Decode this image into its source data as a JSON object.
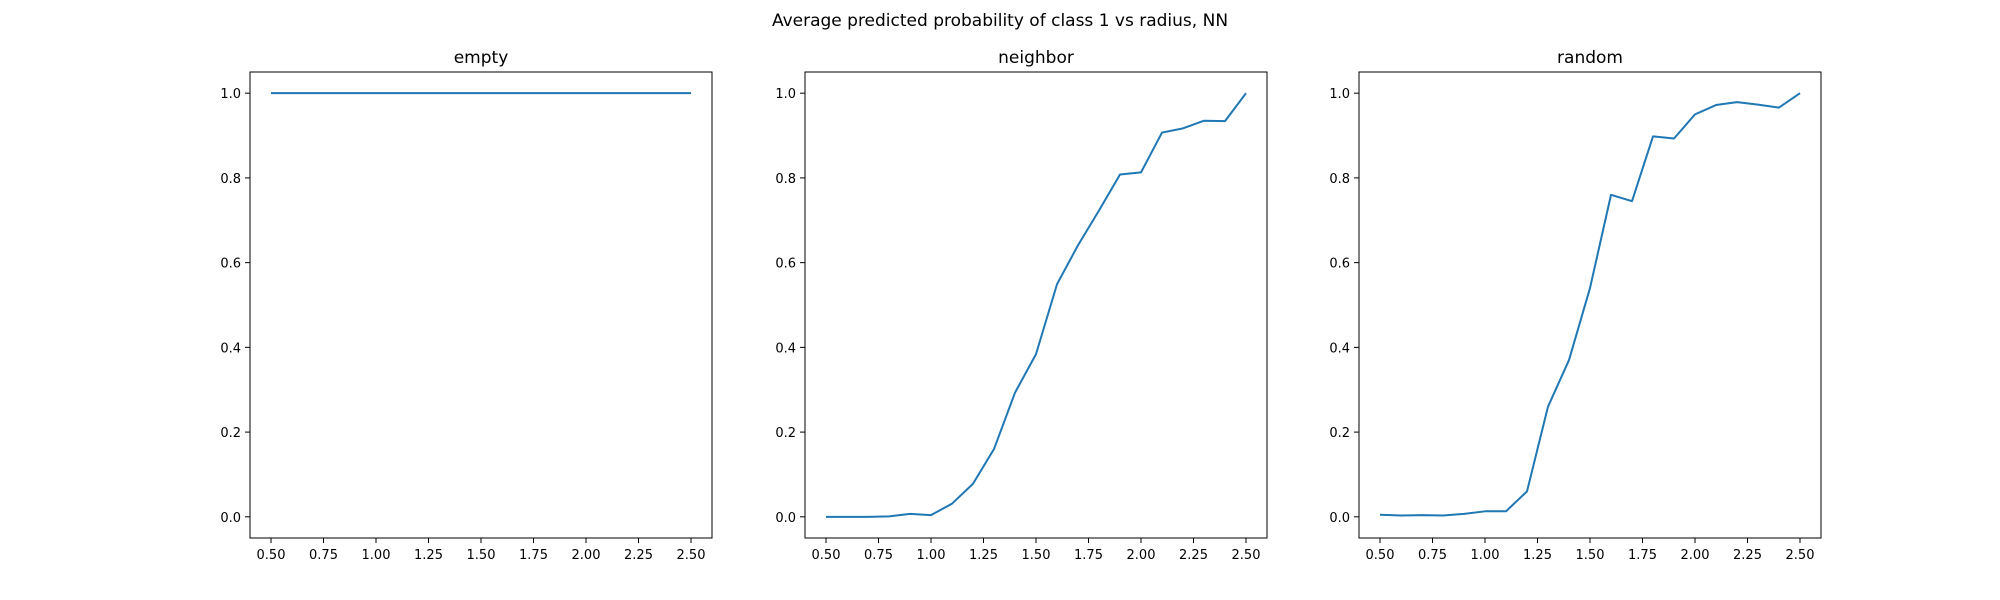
{
  "figure": {
    "suptitle": "Average predicted probability of class 1 vs radius, NN",
    "line_color": "#1f77b4"
  },
  "chart_data": [
    {
      "type": "line",
      "title": "empty",
      "xlabel": "",
      "ylabel": "",
      "xlim": [
        0.4,
        2.6
      ],
      "ylim": [
        -0.05,
        1.05
      ],
      "grid": false,
      "xticks": [
        0.5,
        0.75,
        1.0,
        1.25,
        1.5,
        1.75,
        2.0,
        2.25,
        2.5
      ],
      "xtick_labels": [
        "0.50",
        "0.75",
        "1.00",
        "1.25",
        "1.50",
        "1.75",
        "2.00",
        "2.25",
        "2.50"
      ],
      "yticks": [
        0.0,
        0.2,
        0.4,
        0.6,
        0.8,
        1.0
      ],
      "ytick_labels": [
        "0.0",
        "0.2",
        "0.4",
        "0.6",
        "0.8",
        "1.0"
      ],
      "x": [
        0.5,
        0.6,
        0.7,
        0.8,
        0.9,
        1.0,
        1.1,
        1.2,
        1.3,
        1.4,
        1.5,
        1.6,
        1.7,
        1.8,
        1.9,
        2.0,
        2.1,
        2.2,
        2.3,
        2.4,
        2.5
      ],
      "y": [
        1.0,
        1.0,
        1.0,
        1.0,
        1.0,
        1.0,
        1.0,
        1.0,
        1.0,
        1.0,
        1.0,
        1.0,
        1.0,
        1.0,
        1.0,
        1.0,
        1.0,
        1.0,
        1.0,
        1.0,
        1.0
      ]
    },
    {
      "type": "line",
      "title": "neighbor",
      "xlabel": "",
      "ylabel": "",
      "xlim": [
        0.4,
        2.6
      ],
      "ylim": [
        -0.05,
        1.05
      ],
      "grid": false,
      "xticks": [
        0.5,
        0.75,
        1.0,
        1.25,
        1.5,
        1.75,
        2.0,
        2.25,
        2.5
      ],
      "xtick_labels": [
        "0.50",
        "0.75",
        "1.00",
        "1.25",
        "1.50",
        "1.75",
        "2.00",
        "2.25",
        "2.50"
      ],
      "yticks": [
        0.0,
        0.2,
        0.4,
        0.6,
        0.8,
        1.0
      ],
      "ytick_labels": [
        "0.0",
        "0.2",
        "0.4",
        "0.6",
        "0.8",
        "1.0"
      ],
      "x": [
        0.5,
        0.6,
        0.7,
        0.8,
        0.9,
        1.0,
        1.1,
        1.2,
        1.3,
        1.4,
        1.5,
        1.6,
        1.7,
        1.8,
        1.9,
        2.0,
        2.1,
        2.2,
        2.3,
        2.4,
        2.5
      ],
      "y": [
        0.0,
        0.0,
        0.0,
        0.001,
        0.007,
        0.004,
        0.031,
        0.078,
        0.16,
        0.293,
        0.384,
        0.549,
        0.641,
        0.723,
        0.808,
        0.813,
        0.907,
        0.917,
        0.935,
        0.934,
        1.0
      ]
    },
    {
      "type": "line",
      "title": "random",
      "xlabel": "",
      "ylabel": "",
      "xlim": [
        0.4,
        2.6
      ],
      "ylim": [
        -0.05,
        1.05
      ],
      "grid": false,
      "xticks": [
        0.5,
        0.75,
        1.0,
        1.25,
        1.5,
        1.75,
        2.0,
        2.25,
        2.5
      ],
      "xtick_labels": [
        "0.50",
        "0.75",
        "1.00",
        "1.25",
        "1.50",
        "1.75",
        "2.00",
        "2.25",
        "2.50"
      ],
      "yticks": [
        0.0,
        0.2,
        0.4,
        0.6,
        0.8,
        1.0
      ],
      "ytick_labels": [
        "0.0",
        "0.2",
        "0.4",
        "0.6",
        "0.8",
        "1.0"
      ],
      "x": [
        0.5,
        0.6,
        0.7,
        0.8,
        0.9,
        1.0,
        1.1,
        1.2,
        1.3,
        1.4,
        1.5,
        1.6,
        1.7,
        1.8,
        1.9,
        2.0,
        2.1,
        2.2,
        2.3,
        2.4,
        2.5
      ],
      "y": [
        0.005,
        0.003,
        0.004,
        0.003,
        0.007,
        0.013,
        0.013,
        0.06,
        0.26,
        0.37,
        0.54,
        0.76,
        0.745,
        0.898,
        0.893,
        0.95,
        0.972,
        0.979,
        0.973,
        0.966,
        1.0
      ]
    }
  ]
}
